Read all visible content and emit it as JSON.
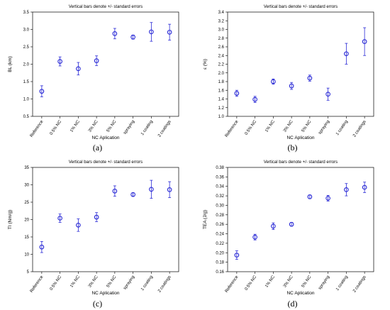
{
  "figure": {
    "captions": [
      "(a)",
      "(b)",
      "(c)",
      "(d)"
    ]
  },
  "chart_data": [
    {
      "type": "scatter",
      "title": "Vertical bars denote +/- standard errors",
      "xlabel": "NC Aplication",
      "ylabel": "BL (km)",
      "categories": [
        "Reference",
        "0.5% NC",
        "1% NC",
        "3% NC",
        "5% NC",
        "spraying",
        "1 coating",
        "2 coatings"
      ],
      "values": [
        1.22,
        2.08,
        1.87,
        2.1,
        2.88,
        2.78,
        2.93,
        2.92
      ],
      "errors": [
        0.16,
        0.13,
        0.18,
        0.14,
        0.15,
        0.06,
        0.27,
        0.23
      ],
      "ylim": [
        0.5,
        3.5
      ],
      "yticks": [
        "0.5",
        "1.0",
        "1.5",
        "2.0",
        "2.5",
        "3.0",
        "3.5"
      ],
      "grid": false,
      "marker_color": "#2b2bd6"
    },
    {
      "type": "scatter",
      "title": "Vertical bars denote +/- standard errors",
      "xlabel": "NC Aplication",
      "ylabel": "ε (%)",
      "categories": [
        "Reference",
        "0.5% NC",
        "1% NC",
        "3% NC",
        "5% NC",
        "spraying",
        "1 coating",
        "2 coatings"
      ],
      "values": [
        1.53,
        1.39,
        1.8,
        1.7,
        1.88,
        1.51,
        2.44,
        2.72
      ],
      "errors": [
        0.07,
        0.07,
        0.06,
        0.08,
        0.07,
        0.14,
        0.24,
        0.32
      ],
      "ylim": [
        1.0,
        3.4
      ],
      "yticks": [
        "1.0",
        "1.2",
        "1.4",
        "1.6",
        "1.8",
        "2.0",
        "2.2",
        "2.4",
        "2.6",
        "2.8",
        "3.0",
        "3.2",
        "3.4"
      ],
      "grid": false,
      "marker_color": "#2b2bd6"
    },
    {
      "type": "scatter",
      "title": "Vertical bars denote +/- standard errors",
      "xlabel": "NC Aplication",
      "ylabel": "TI (Nm/g)",
      "categories": [
        "Reference",
        "0.5% NC",
        "1% NC",
        "3% NC",
        "5% NC",
        "spraying",
        "1 coating",
        "2 coatings"
      ],
      "values": [
        12.1,
        20.4,
        18.4,
        20.7,
        28.2,
        27.2,
        28.7,
        28.6
      ],
      "errors": [
        1.6,
        1.2,
        1.8,
        1.3,
        1.5,
        0.5,
        2.6,
        2.3
      ],
      "ylim": [
        5,
        35
      ],
      "yticks": [
        "5",
        "10",
        "15",
        "20",
        "25",
        "30",
        "35"
      ],
      "grid": false,
      "marker_color": "#2b2bd6"
    },
    {
      "type": "scatter",
      "title": "Vertical bars denote +/- standard errors",
      "xlabel": "NC Aplication",
      "ylabel": "TEA (J/g)",
      "categories": [
        "Reference",
        "0.5% NC",
        "1% NC",
        "3% NC",
        "5% NC",
        "spraying",
        "1 coating",
        "2 coatings"
      ],
      "values": [
        0.195,
        0.233,
        0.256,
        0.26,
        0.318,
        0.315,
        0.333,
        0.338
      ],
      "errors": [
        0.009,
        0.006,
        0.007,
        0.004,
        0.004,
        0.006,
        0.013,
        0.011
      ],
      "ylim": [
        0.16,
        0.38
      ],
      "yticks": [
        "0.16",
        "0.18",
        "0.20",
        "0.22",
        "0.24",
        "0.26",
        "0.28",
        "0.30",
        "0.32",
        "0.34",
        "0.36",
        "0.38"
      ],
      "grid": false,
      "marker_color": "#2b2bd6"
    }
  ]
}
